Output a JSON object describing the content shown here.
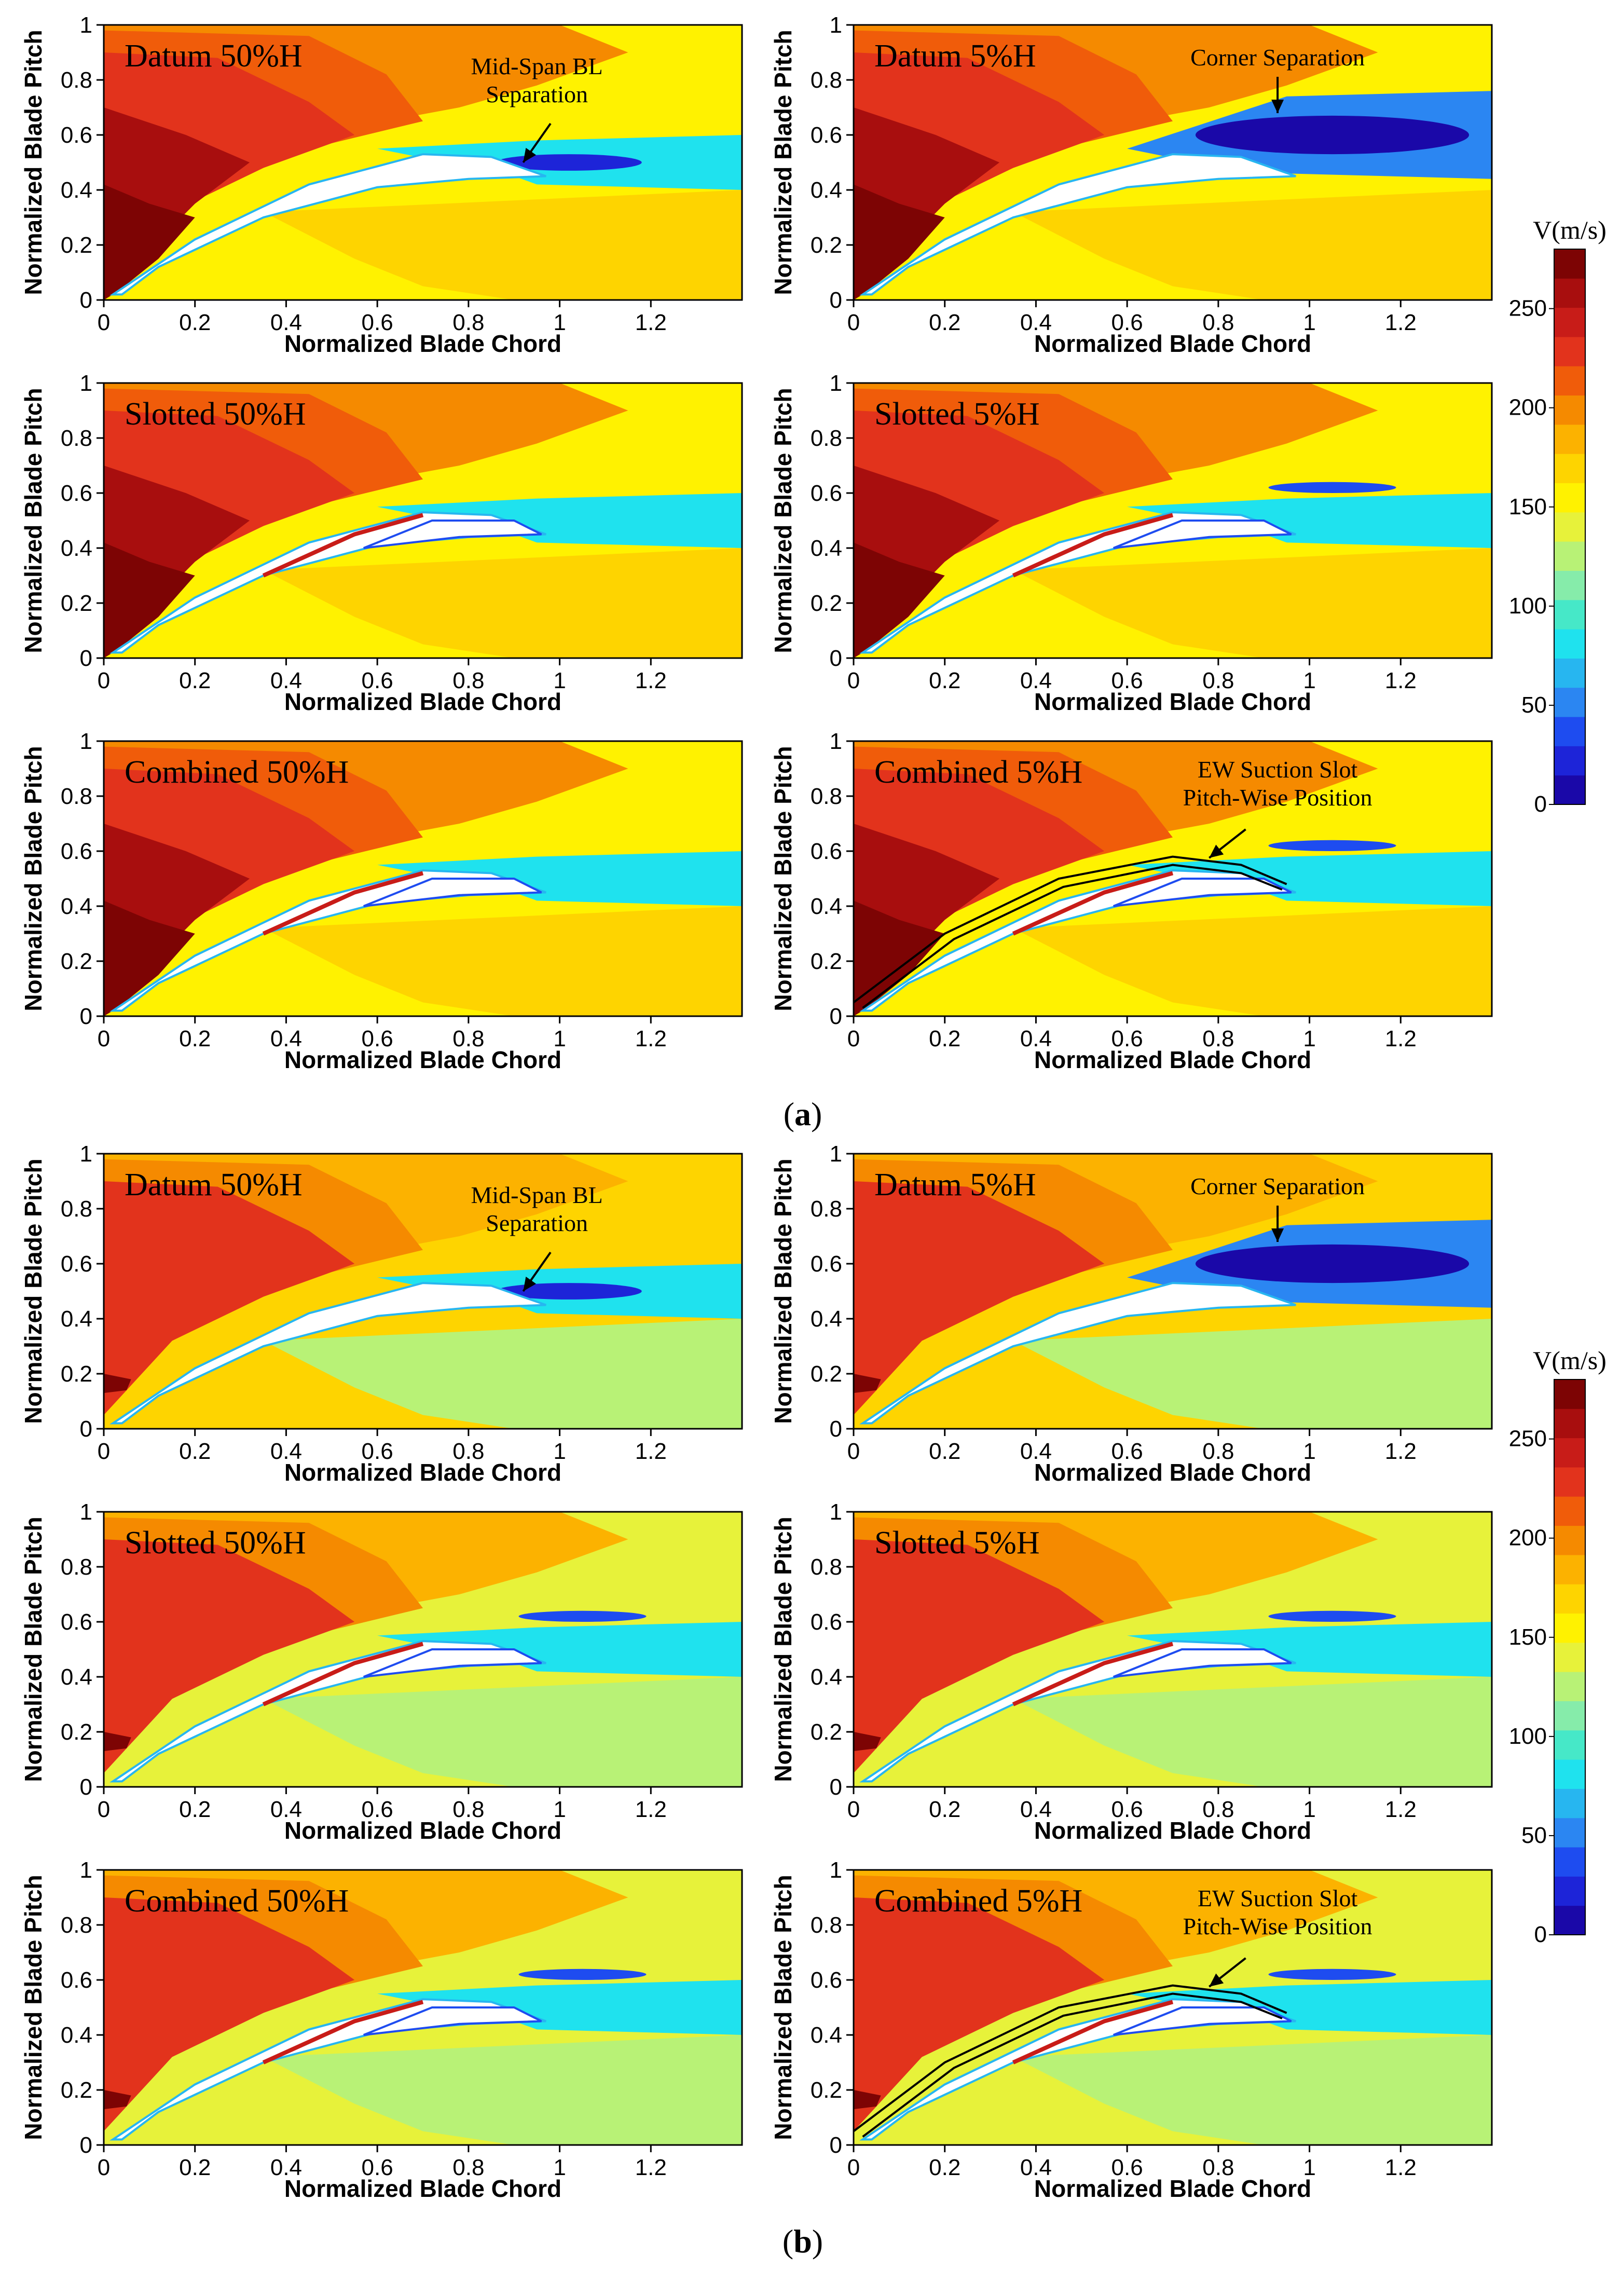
{
  "chart_data": {
    "type": "heatmap",
    "description_axes": {
      "xlabel": "Normalized Blade Chord",
      "ylabel": "Normalized Blade Pitch",
      "xlim": [
        0,
        1.4
      ],
      "ylim": [
        0,
        1
      ],
      "xticks": [
        "0",
        "0.2",
        "0.4",
        "0.6",
        "0.8",
        "1",
        "1.2"
      ],
      "yticks": [
        "0",
        "0.2",
        "0.4",
        "0.6",
        "0.8",
        "1"
      ]
    },
    "colorbar": {
      "title": "V(m/s)",
      "range": [
        0,
        280
      ],
      "ticks": [
        "0",
        "50",
        "100",
        "150",
        "200",
        "250"
      ],
      "levels": [
        "#1a08a8",
        "#1d24d8",
        "#1e4cf0",
        "#2b86f2",
        "#27b6f0",
        "#1fe2ee",
        "#46e8c8",
        "#86ecaa",
        "#b8f276",
        "#e7f23a",
        "#fff200",
        "#fed400",
        "#fcb200",
        "#f58a00",
        "#f05c0a",
        "#e2331c",
        "#c81c18",
        "#a80e0e",
        "#7d0404"
      ]
    },
    "groups": [
      {
        "caption": "a",
        "panels": [
          {
            "title": "Datum 50%H",
            "annotation": [
              "Mid-Span BL",
              "Separation"
            ]
          },
          {
            "title": "Datum 5%H",
            "annotation": [
              "Corner Separation"
            ]
          },
          {
            "title": "Slotted 50%H"
          },
          {
            "title": "Slotted 5%H"
          },
          {
            "title": "Combined 50%H"
          },
          {
            "title": "Combined 5%H",
            "annotation": [
              "EW Suction Slot",
              "Pitch-Wise Position"
            ]
          }
        ]
      },
      {
        "caption": "b",
        "panels": [
          {
            "title": "Datum 50%H",
            "annotation": [
              "Mid-Span BL",
              "Separation"
            ]
          },
          {
            "title": "Datum 5%H",
            "annotation": [
              "Corner Separation"
            ]
          },
          {
            "title": "Slotted 50%H"
          },
          {
            "title": "Slotted 5%H"
          },
          {
            "title": "Combined 50%H"
          },
          {
            "title": "Combined 5%H",
            "annotation": [
              "EW Suction Slot",
              "Pitch-Wise Position"
            ]
          }
        ]
      }
    ]
  }
}
